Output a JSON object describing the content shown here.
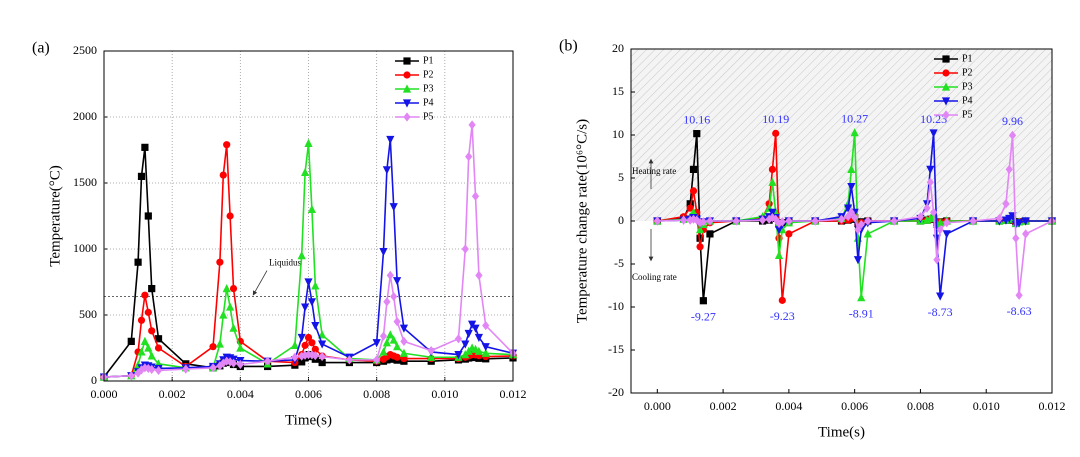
{
  "chart_data": [
    {
      "type": "line",
      "panel_label": "(a)",
      "xlabel": "Time(s)",
      "ylabel": "Temperature(°C)",
      "xlim": [
        0,
        0.012
      ],
      "ylim": [
        0,
        2500
      ],
      "xticks": [
        {
          "value": 0,
          "label": "0.000"
        },
        {
          "value": 0.002,
          "label": "0.002"
        },
        {
          "value": 0.004,
          "label": "0.004"
        },
        {
          "value": 0.006,
          "label": "0.006"
        },
        {
          "value": 0.008,
          "label": "0.008"
        },
        {
          "value": 0.01,
          "label": "0.010"
        },
        {
          "value": 0.012,
          "label": "0.012"
        }
      ],
      "yticks": [
        0,
        500,
        1000,
        1500,
        2000,
        2500
      ],
      "grid": true,
      "legend": "upper right",
      "reference_line": {
        "label": "Liquidus",
        "value": 640
      },
      "x": [
        0,
        0.0008,
        0.001,
        0.0011,
        0.0012,
        0.0013,
        0.0014,
        0.0016,
        0.0024,
        0.0032,
        0.0034,
        0.0035,
        0.0036,
        0.0037,
        0.0038,
        0.004,
        0.0048,
        0.0056,
        0.0058,
        0.0059,
        0.006,
        0.0061,
        0.0062,
        0.0064,
        0.0072,
        0.008,
        0.0082,
        0.0083,
        0.0084,
        0.0085,
        0.0086,
        0.0088,
        0.0096,
        0.0104,
        0.0106,
        0.0107,
        0.0108,
        0.0109,
        0.011,
        0.0112,
        0.012
      ],
      "series": [
        {
          "name": "P1",
          "color": "#000000",
          "marker": "square",
          "values": [
            30,
            300,
            900,
            1550,
            1770,
            1250,
            700,
            320,
            130,
            100,
            115,
            135,
            150,
            140,
            125,
            110,
            110,
            120,
            145,
            175,
            200,
            185,
            165,
            140,
            140,
            140,
            150,
            160,
            170,
            165,
            158,
            150,
            150,
            160,
            166,
            174,
            180,
            178,
            172,
            168,
            175
          ]
        },
        {
          "name": "P2",
          "color": "#ff0000",
          "marker": "circle",
          "values": [
            30,
            40,
            220,
            460,
            650,
            520,
            380,
            250,
            110,
            260,
            900,
            1560,
            1790,
            1250,
            700,
            300,
            150,
            140,
            200,
            270,
            330,
            290,
            240,
            190,
            160,
            150,
            165,
            185,
            200,
            190,
            180,
            170,
            170,
            170,
            180,
            190,
            200,
            198,
            192,
            185,
            190
          ]
        },
        {
          "name": "P3",
          "color": "#22e022",
          "marker": "triangle-up",
          "values": [
            30,
            40,
            120,
            220,
            300,
            250,
            190,
            130,
            100,
            100,
            280,
            500,
            700,
            560,
            400,
            250,
            130,
            270,
            950,
            1580,
            1800,
            1300,
            720,
            350,
            170,
            160,
            220,
            290,
            350,
            310,
            260,
            210,
            180,
            180,
            200,
            225,
            250,
            240,
            225,
            210,
            200
          ]
        },
        {
          "name": "P4",
          "color": "#1414e6",
          "marker": "triangle-down",
          "values": [
            30,
            40,
            70,
            100,
            120,
            115,
            105,
            95,
            100,
            110,
            130,
            160,
            180,
            175,
            165,
            155,
            150,
            160,
            330,
            560,
            750,
            600,
            420,
            280,
            180,
            290,
            980,
            1600,
            1830,
            1320,
            760,
            400,
            220,
            200,
            280,
            360,
            430,
            400,
            330,
            260,
            210
          ]
        },
        {
          "name": "P5",
          "color": "#e285f5",
          "marker": "diamond",
          "values": [
            30,
            40,
            60,
            85,
            100,
            95,
            88,
            80,
            90,
            100,
            115,
            135,
            150,
            145,
            135,
            125,
            150,
            180,
            188,
            195,
            200,
            198,
            192,
            185,
            160,
            160,
            340,
            600,
            800,
            640,
            450,
            300,
            230,
            320,
            1000,
            1700,
            1940,
            1400,
            800,
            420,
            210
          ]
        }
      ]
    },
    {
      "type": "line",
      "panel_label": "(b)",
      "xlabel": "Time(s)",
      "ylabel": "Temperature change rate(10⁶°C/s)",
      "xlim": [
        -0.0008,
        0.012
      ],
      "ylim": [
        -20,
        20
      ],
      "xticks": [
        {
          "value": 0,
          "label": "0.000"
        },
        {
          "value": 0.002,
          "label": "0.002"
        },
        {
          "value": 0.004,
          "label": "0.004"
        },
        {
          "value": 0.006,
          "label": "0.006"
        },
        {
          "value": 0.008,
          "label": "0.008"
        },
        {
          "value": 0.01,
          "label": "0.010"
        },
        {
          "value": 0.012,
          "label": "0.012"
        }
      ],
      "yticks": [
        -20,
        -15,
        -10,
        -5,
        0,
        5,
        10,
        15,
        20
      ],
      "grid": false,
      "legend": "upper right",
      "shaded_ylim": [
        0,
        20
      ],
      "heating_label": "Heating rate",
      "cooling_label": "Cooling rate",
      "data_label_color": "#3333ff",
      "x": [
        0,
        0.0008,
        0.001,
        0.0011,
        0.0012,
        0.0013,
        0.0014,
        0.0016,
        0.0024,
        0.0032,
        0.0034,
        0.0035,
        0.0036,
        0.0037,
        0.0038,
        0.004,
        0.0048,
        0.0056,
        0.0058,
        0.0059,
        0.006,
        0.0061,
        0.0062,
        0.0064,
        0.0072,
        0.008,
        0.0082,
        0.0083,
        0.0084,
        0.0085,
        0.0086,
        0.0088,
        0.0096,
        0.0104,
        0.0106,
        0.0107,
        0.0108,
        0.0109,
        0.011,
        0.0112,
        0.012
      ],
      "series": [
        {
          "name": "P1",
          "color": "#000000",
          "marker": "square",
          "values": [
            0,
            0.3,
            2,
            6,
            10.16,
            -2,
            -9.27,
            -1.5,
            0,
            0,
            0.1,
            0.3,
            0.6,
            -0.4,
            -0.2,
            0,
            0,
            0,
            0.1,
            0.2,
            0.4,
            -0.3,
            -0.1,
            0,
            0,
            0,
            0.1,
            0.2,
            0.3,
            -0.2,
            -0.1,
            0,
            0,
            0,
            0.1,
            0.1,
            0.2,
            -0.1,
            -0.1,
            0,
            0
          ]
        },
        {
          "name": "P2",
          "color": "#ff0000",
          "marker": "circle",
          "values": [
            0,
            0.5,
            1.5,
            3.5,
            1,
            -3,
            -1,
            -0.2,
            0,
            0.3,
            2,
            6,
            10.19,
            -2,
            -9.23,
            -1.5,
            0,
            0,
            0.1,
            0.3,
            0.6,
            -0.4,
            -0.2,
            0,
            0,
            0,
            0.1,
            0.2,
            0.4,
            -0.3,
            -0.1,
            0,
            0,
            0,
            0.1,
            0.2,
            0.3,
            -0.2,
            -0.1,
            0,
            0
          ]
        },
        {
          "name": "P3",
          "color": "#22e022",
          "marker": "triangle-up",
          "values": [
            0,
            0.2,
            0.5,
            1,
            0.4,
            -1,
            -0.4,
            0,
            0,
            0.5,
            1.5,
            4.5,
            1,
            -4,
            -1,
            -0.2,
            0,
            0.3,
            2,
            6,
            10.27,
            -2,
            -8.91,
            -1.5,
            0,
            0,
            0.1,
            0.3,
            0.6,
            -0.4,
            -0.2,
            0,
            0,
            0,
            0.1,
            0.2,
            0.4,
            -0.3,
            -0.1,
            0,
            0
          ]
        },
        {
          "name": "P4",
          "color": "#1414e6",
          "marker": "triangle-down",
          "values": [
            0,
            0.1,
            0.2,
            0.4,
            0.2,
            -0.3,
            -0.1,
            0,
            0,
            0.2,
            0.5,
            1,
            0.4,
            -1,
            -0.4,
            0,
            0,
            0.5,
            1.5,
            4,
            1,
            -4.5,
            -1,
            -0.2,
            0,
            0.3,
            2,
            6,
            10.23,
            -2,
            -8.73,
            -1.5,
            0,
            0,
            0.1,
            0.3,
            0.6,
            -0.4,
            -0.2,
            0,
            0
          ]
        },
        {
          "name": "P5",
          "color": "#e285f5",
          "marker": "diamond",
          "values": [
            0,
            0.1,
            0.1,
            0.2,
            0.1,
            -0.2,
            -0.1,
            0,
            0,
            0.1,
            0.2,
            0.4,
            0.2,
            -0.3,
            -0.1,
            0,
            0,
            0.2,
            0.5,
            1,
            0.4,
            -1,
            -0.4,
            0,
            0,
            0.5,
            1.5,
            4.5,
            1,
            -4.5,
            -1,
            -0.2,
            0,
            0.3,
            2,
            6,
            9.96,
            -2,
            -8.63,
            -1.5,
            0
          ]
        }
      ]
    }
  ]
}
